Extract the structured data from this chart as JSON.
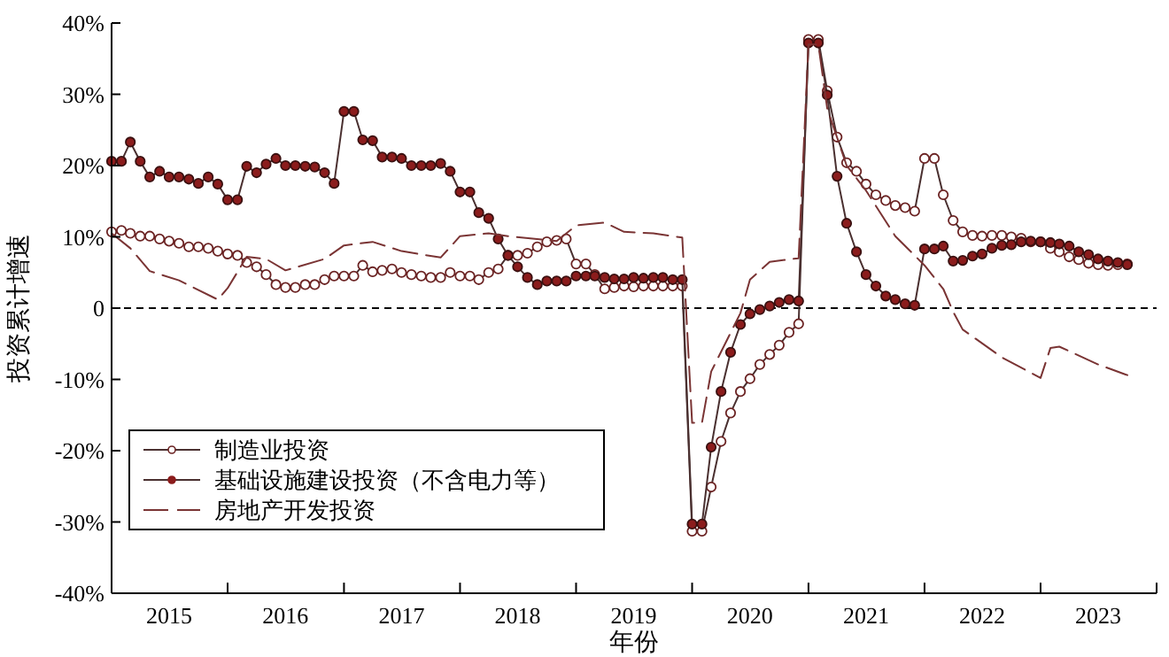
{
  "chart_data": {
    "type": "line",
    "xlabel": "年份",
    "ylabel": "投资累计增速",
    "x": [
      "2015-01",
      "2015-02",
      "2015-03",
      "2015-04",
      "2015-05",
      "2015-06",
      "2015-07",
      "2015-08",
      "2015-09",
      "2015-10",
      "2015-11",
      "2015-12",
      "2016-01",
      "2016-02",
      "2016-03",
      "2016-04",
      "2016-05",
      "2016-06",
      "2016-07",
      "2016-08",
      "2016-09",
      "2016-10",
      "2016-11",
      "2016-12",
      "2017-01",
      "2017-02",
      "2017-03",
      "2017-04",
      "2017-05",
      "2017-06",
      "2017-07",
      "2017-08",
      "2017-09",
      "2017-10",
      "2017-11",
      "2017-12",
      "2018-01",
      "2018-02",
      "2018-03",
      "2018-04",
      "2018-05",
      "2018-06",
      "2018-07",
      "2018-08",
      "2018-09",
      "2018-10",
      "2018-11",
      "2018-12",
      "2019-01",
      "2019-02",
      "2019-03",
      "2019-04",
      "2019-05",
      "2019-06",
      "2019-07",
      "2019-08",
      "2019-09",
      "2019-10",
      "2019-11",
      "2019-12",
      "2020-01",
      "2020-02",
      "2020-03",
      "2020-04",
      "2020-05",
      "2020-06",
      "2020-07",
      "2020-08",
      "2020-09",
      "2020-10",
      "2020-11",
      "2020-12",
      "2021-01",
      "2021-02",
      "2021-03",
      "2021-04",
      "2021-05",
      "2021-06",
      "2021-07",
      "2021-08",
      "2021-09",
      "2021-10",
      "2021-11",
      "2021-12",
      "2022-01",
      "2022-02",
      "2022-03",
      "2022-04",
      "2022-05",
      "2022-06",
      "2022-07",
      "2022-08",
      "2022-09",
      "2022-10",
      "2022-11",
      "2022-12",
      "2023-01",
      "2023-02",
      "2023-03",
      "2023-04",
      "2023-05",
      "2023-06",
      "2023-07",
      "2023-08",
      "2023-09",
      "2023-10"
    ],
    "series": [
      {
        "name": "制造业投资",
        "color": "#6b2323",
        "marker": "circle",
        "values": [
          10.7,
          10.9,
          10.5,
          10.1,
          10.1,
          9.7,
          9.4,
          9.1,
          8.6,
          8.6,
          8.4,
          8.0,
          7.6,
          7.4,
          6.4,
          5.8,
          4.7,
          3.3,
          2.9,
          2.9,
          3.3,
          3.3,
          4.0,
          4.5,
          4.5,
          4.5,
          6.0,
          5.1,
          5.3,
          5.5,
          5.0,
          4.7,
          4.5,
          4.3,
          4.3,
          5.0,
          4.5,
          4.5,
          4.0,
          5.0,
          5.5,
          7.4,
          7.4,
          7.7,
          8.6,
          9.3,
          9.5,
          9.7,
          6.2,
          6.2,
          4.7,
          2.7,
          2.9,
          3.1,
          3.0,
          3.1,
          3.1,
          3.1,
          3.1,
          3.1,
          -31.3,
          -31.3,
          -25.1,
          -18.7,
          -14.7,
          -11.7,
          -9.9,
          -7.9,
          -6.5,
          -5.2,
          -3.4,
          -2.2,
          37.7,
          37.7,
          30.5,
          24.0,
          20.4,
          19.2,
          17.4,
          15.9,
          15.1,
          14.4,
          14.1,
          13.6,
          21.0,
          21.0,
          15.9,
          12.3,
          10.7,
          10.2,
          10.1,
          10.2,
          10.2,
          10.0,
          9.8,
          9.3,
          9.3,
          8.4,
          7.9,
          7.2,
          6.8,
          6.3,
          6.1,
          6.0,
          6.1,
          6.2
        ]
      },
      {
        "name": "基础设施建设投资（不含电力等）",
        "color": "#8b1c1c",
        "marker": "circle",
        "values": [
          20.6,
          20.6,
          23.3,
          20.6,
          18.4,
          19.2,
          18.4,
          18.4,
          18.1,
          17.5,
          18.4,
          17.4,
          15.2,
          15.2,
          19.9,
          19.0,
          20.2,
          21.0,
          20.0,
          20.0,
          19.9,
          19.8,
          19.0,
          17.5,
          27.6,
          27.6,
          23.6,
          23.5,
          21.2,
          21.2,
          21.0,
          20.0,
          20.0,
          20.0,
          20.3,
          19.2,
          16.3,
          16.3,
          13.4,
          12.6,
          9.7,
          7.4,
          5.8,
          4.3,
          3.3,
          3.8,
          3.8,
          3.8,
          4.5,
          4.5,
          4.5,
          4.3,
          4.1,
          4.1,
          4.3,
          4.2,
          4.3,
          4.3,
          4.0,
          4.0,
          -30.3,
          -30.3,
          -19.5,
          -11.7,
          -6.2,
          -2.3,
          -0.8,
          -0.2,
          0.3,
          0.8,
          1.2,
          1.0,
          37.2,
          37.2,
          29.9,
          18.5,
          11.9,
          7.9,
          4.7,
          3.1,
          1.7,
          1.2,
          0.6,
          0.4,
          8.3,
          8.3,
          8.7,
          6.6,
          6.7,
          7.3,
          7.6,
          8.4,
          8.8,
          8.9,
          9.3,
          9.4,
          9.3,
          9.2,
          9.0,
          8.7,
          7.9,
          7.5,
          6.9,
          6.6,
          6.4,
          6.1
        ]
      },
      {
        "name": "房地产开发投资",
        "color": "#7a3434",
        "marker": "none",
        "line_style": "dashed",
        "x": [
          "2015-01",
          "2015-03",
          "2015-05",
          "2015-08",
          "2015-12",
          "2016-01",
          "2016-03",
          "2016-05",
          "2016-07",
          "2016-11",
          "2017-01",
          "2017-04",
          "2017-07",
          "2017-11",
          "2018-01",
          "2018-04",
          "2018-06",
          "2018-11",
          "2019-01",
          "2019-04",
          "2019-06",
          "2019-09",
          "2019-12",
          "2020-01",
          "2020-02",
          "2020-03",
          "2020-06",
          "2020-07",
          "2020-09",
          "2020-12",
          "2021-01",
          "2021-02",
          "2021-03",
          "2021-05",
          "2021-07",
          "2021-10",
          "2022-01",
          "2022-03",
          "2022-04",
          "2022-05",
          "2022-09",
          "2023-01",
          "2023-02",
          "2023-03",
          "2023-07",
          "2023-10"
        ],
        "values": [
          10.5,
          8.4,
          5.2,
          3.9,
          1.2,
          2.8,
          7.2,
          6.9,
          5.3,
          6.9,
          8.8,
          9.3,
          8.0,
          7.1,
          10.1,
          10.5,
          10.1,
          9.4,
          11.6,
          12.0,
          10.7,
          10.5,
          9.9,
          -16.1,
          -16.1,
          -8.9,
          -0.7,
          4.0,
          6.5,
          7.0,
          37.0,
          37.0,
          28.0,
          20.0,
          16.5,
          10.1,
          6.0,
          2.7,
          -0.5,
          -3.0,
          -6.9,
          -9.8,
          -5.6,
          -5.4,
          -7.9,
          -9.4
        ]
      }
    ],
    "xlim": [
      "2015",
      "2024"
    ],
    "xticks": [
      {
        "value": "2015-07",
        "label": "2015"
      },
      {
        "value": "2016",
        "label": null
      },
      {
        "value": "2016-07",
        "label": "2016"
      },
      {
        "value": "2017",
        "label": null
      },
      {
        "value": "2017-07",
        "label": "2017"
      },
      {
        "value": "2018",
        "label": null
      },
      {
        "value": "2018-07",
        "label": "2018"
      },
      {
        "value": "2019",
        "label": null
      },
      {
        "value": "2019-07",
        "label": "2019"
      },
      {
        "value": "2020",
        "label": null
      },
      {
        "value": "2020-07",
        "label": "2020"
      },
      {
        "value": "2021",
        "label": null
      },
      {
        "value": "2021-07",
        "label": "2021"
      },
      {
        "value": "2022",
        "label": null
      },
      {
        "value": "2022-07",
        "label": "2022"
      },
      {
        "value": "2023",
        "label": null
      },
      {
        "value": "2023-07",
        "label": "2023"
      },
      {
        "value": "2024",
        "label": null
      }
    ],
    "ylim": [
      -40,
      40
    ],
    "yticks": [
      {
        "value": -40,
        "label": "-40%"
      },
      {
        "value": -30,
        "label": "-30%"
      },
      {
        "value": -20,
        "label": "-20%"
      },
      {
        "value": -10,
        "label": "-10%"
      },
      0,
      {
        "value": 10,
        "label": "10%"
      },
      {
        "value": 20,
        "label": "20%"
      },
      {
        "value": 30,
        "label": "30%"
      },
      {
        "value": 40,
        "label": "40%"
      }
    ],
    "ref_lines": [
      {
        "axis": "y",
        "value": 0,
        "color": "#000000",
        "line_style": "dashed"
      }
    ],
    "legend": "left",
    "grid": false
  }
}
